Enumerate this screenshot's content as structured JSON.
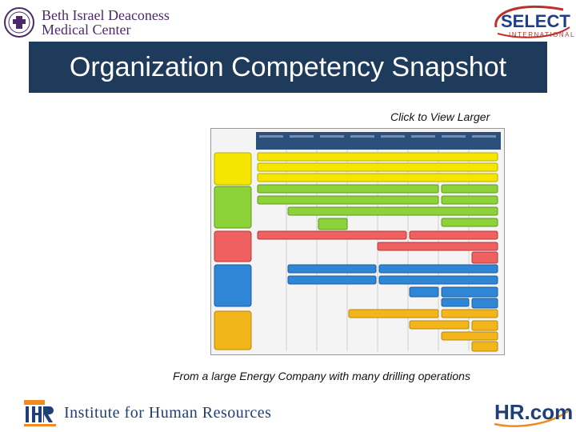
{
  "header": {
    "left_logo": {
      "line1": "Beth Israel Deaconess",
      "line2": "Medical Center"
    },
    "right_logo": {
      "word": "SELECT",
      "sub": "INTERNATIONAL"
    }
  },
  "title": "Organization Competency Snapshot",
  "click_link": "Click to View Larger",
  "caption": "From a large Energy Company with many drilling operations",
  "footer": {
    "left_logo_text": "Institute for Human Resources",
    "left_logo_abbr": "IHR",
    "right_logo_text": "HR.com"
  },
  "colors": {
    "title_bar": "#1f3b5c",
    "core_values": "#f5e600",
    "work_style": "#8ed23a",
    "entrepreneurial": "#ef6060",
    "thinking": "#2f86d6",
    "leadership": "#f3b61a"
  }
}
